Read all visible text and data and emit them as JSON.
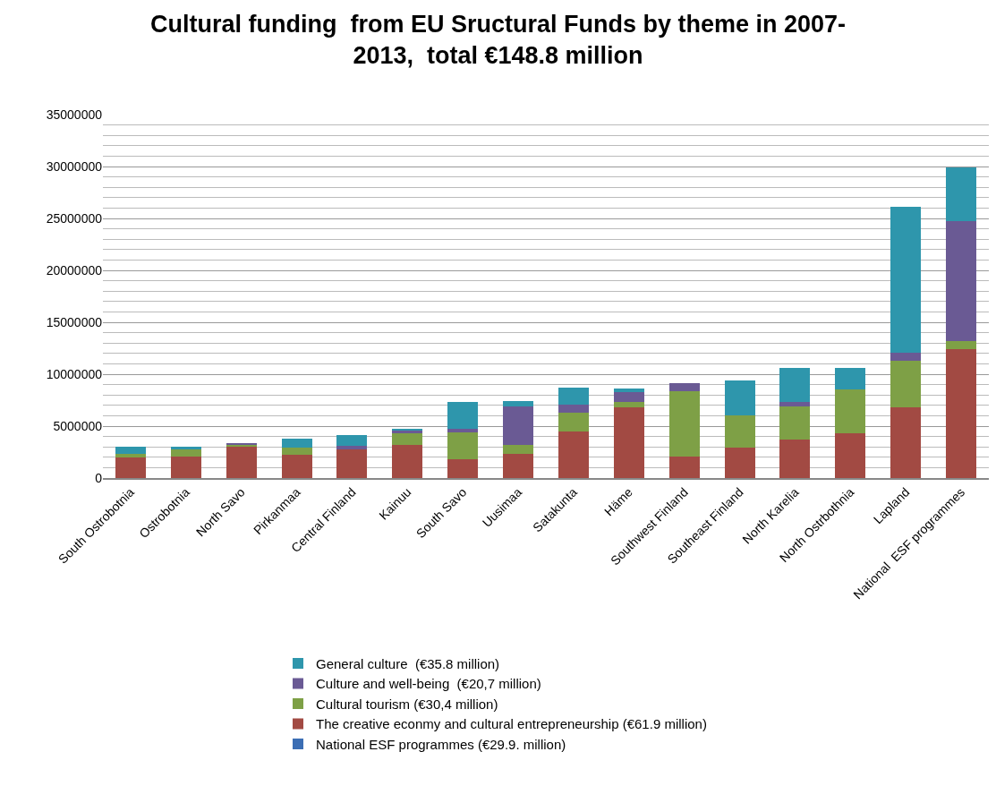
{
  "chart_data": {
    "type": "bar",
    "title": "Cultural funding  from EU Sructural Funds by theme in 2007-\n2013,  total €148.8 million",
    "categories": [
      "South Ostrobotnia",
      "Ostrobotnia",
      "North Savo",
      "Pirkanmaa",
      "Central Finland",
      "Kainuu",
      "South Savo",
      "Uusimaa",
      "Satakunta",
      "Häme",
      "Southwest Finland",
      "Southeast Finland",
      "North Karelia",
      "North Ostrbothnia",
      "Lapland",
      "National  ESF programmes"
    ],
    "stacked": true,
    "series": [
      {
        "name": "National ESF programmes (€29.9. million)",
        "color": "#3c6eb4",
        "values": [
          0,
          0,
          0,
          0,
          0,
          0,
          0,
          0,
          0,
          0,
          0,
          0,
          0,
          0,
          0,
          0
        ]
      },
      {
        "name": "The creative econmy and cultural entrepreneurship (€61.9 million)",
        "color": "#a24a43",
        "values": [
          2000000,
          2100000,
          3000000,
          2200000,
          2800000,
          3200000,
          1800000,
          2300000,
          4500000,
          6800000,
          2100000,
          2900000,
          3700000,
          4300000,
          6800000,
          12400000
        ]
      },
      {
        "name": "Cultural tourism (€30,4 million)",
        "color": "#7ea046",
        "values": [
          300000,
          700000,
          200000,
          700000,
          0,
          1100000,
          2600000,
          900000,
          1800000,
          500000,
          6300000,
          3100000,
          3200000,
          4200000,
          4500000,
          800000
        ]
      },
      {
        "name": "Culture and well-being  (€20,7 million)",
        "color": "#6a5a94",
        "values": [
          0,
          0,
          100000,
          0,
          300000,
          300000,
          300000,
          3700000,
          800000,
          1000000,
          700000,
          0,
          400000,
          0,
          800000,
          11500000
        ]
      },
      {
        "name": "General culture  (€35.8 million)",
        "color": "#2e96ac",
        "values": [
          700000,
          200000,
          0,
          900000,
          1000000,
          100000,
          2600000,
          500000,
          1600000,
          300000,
          0,
          3400000,
          3300000,
          2100000,
          14000000,
          5200000
        ]
      }
    ],
    "ylim": [
      0,
      35000000
    ],
    "yticks": [
      0,
      5000000,
      10000000,
      15000000,
      20000000,
      25000000,
      30000000,
      35000000
    ],
    "grid": true,
    "legend": "bottom"
  }
}
